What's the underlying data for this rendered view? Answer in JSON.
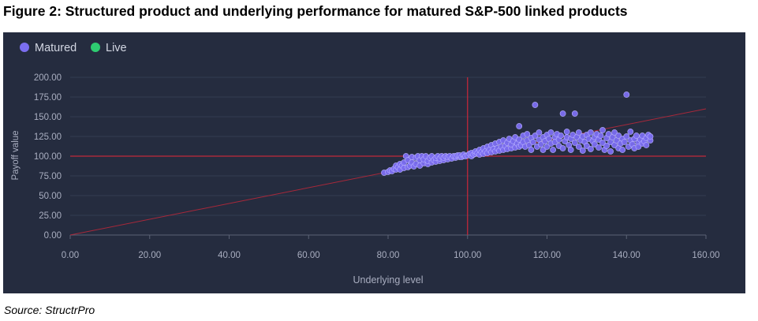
{
  "figure_title": "Figure 2: Structured product and underlying performance for matured S&P-500 linked products",
  "source": "Source: StructrPro",
  "colors": {
    "panel_bg": "#252c3f",
    "matured": "#7b6ef0",
    "live": "#2ecc71",
    "reference_lines": "#c0283a",
    "diagonal": "#c0283a",
    "grid": "#343b50",
    "axis_text": "#a9aec0"
  },
  "chart_data": {
    "type": "scatter",
    "title": "",
    "xlabel": "Underlying level",
    "ylabel": "Payoff value",
    "xlim": [
      0,
      160
    ],
    "ylim": [
      0,
      200
    ],
    "x_ticks": [
      "0.00",
      "20.00",
      "40.00",
      "60.00",
      "80.00",
      "100.00",
      "120.00",
      "140.00",
      "160.00"
    ],
    "y_ticks": [
      "0.00",
      "25.00",
      "50.00",
      "75.00",
      "100.00",
      "125.00",
      "150.00",
      "175.00",
      "200.00"
    ],
    "grid": "horizontal",
    "legend_position": "top-left",
    "reference_lines": {
      "vertical_x": 100,
      "horizontal_y": 100,
      "diagonal": "y = x"
    },
    "series": [
      {
        "name": "Matured",
        "points": [
          [
            79,
            79
          ],
          [
            80,
            80
          ],
          [
            80.5,
            82
          ],
          [
            81,
            81
          ],
          [
            81.5,
            84
          ],
          [
            82,
            83
          ],
          [
            82,
            88
          ],
          [
            82.5,
            86
          ],
          [
            83,
            83
          ],
          [
            83,
            90
          ],
          [
            83.5,
            88
          ],
          [
            84,
            85
          ],
          [
            84,
            92
          ],
          [
            84.5,
            100
          ],
          [
            85,
            86
          ],
          [
            85,
            95
          ],
          [
            85.5,
            88
          ],
          [
            86,
            92
          ],
          [
            86,
            99
          ],
          [
            86.5,
            87
          ],
          [
            87,
            90
          ],
          [
            87,
            98
          ],
          [
            87.5,
            100
          ],
          [
            88,
            88
          ],
          [
            88,
            95
          ],
          [
            88.5,
            100
          ],
          [
            89,
            91
          ],
          [
            89,
            96
          ],
          [
            89.5,
            100
          ],
          [
            90,
            90
          ],
          [
            90,
            94
          ],
          [
            90.5,
            98
          ],
          [
            91,
            92
          ],
          [
            91,
            100
          ],
          [
            91.5,
            95
          ],
          [
            92,
            93
          ],
          [
            92,
            98
          ],
          [
            92.5,
            100
          ],
          [
            93,
            94
          ],
          [
            93,
            97
          ],
          [
            93.5,
            100
          ],
          [
            94,
            95
          ],
          [
            94,
            98
          ],
          [
            94.5,
            100
          ],
          [
            95,
            96
          ],
          [
            95,
            99
          ],
          [
            95.5,
            100
          ],
          [
            96,
            97
          ],
          [
            96.5,
            100
          ],
          [
            97,
            98
          ],
          [
            97,
            100
          ],
          [
            97.5,
            101
          ],
          [
            98,
            99
          ],
          [
            98,
            101
          ],
          [
            98.5,
            99
          ],
          [
            99,
            100
          ],
          [
            99,
            102
          ],
          [
            99.5,
            100
          ],
          [
            100,
            101
          ],
          [
            100.5,
            103
          ],
          [
            101,
            100
          ],
          [
            101,
            104
          ],
          [
            101.5,
            102
          ],
          [
            102,
            103
          ],
          [
            102,
            106
          ],
          [
            102.5,
            104
          ],
          [
            103,
            102
          ],
          [
            103,
            108
          ],
          [
            103.5,
            105
          ],
          [
            104,
            103
          ],
          [
            104,
            110
          ],
          [
            104.5,
            106
          ],
          [
            105,
            104
          ],
          [
            105,
            112
          ],
          [
            105.5,
            108
          ],
          [
            106,
            105
          ],
          [
            106,
            114
          ],
          [
            106.5,
            109
          ],
          [
            107,
            106
          ],
          [
            107,
            116
          ],
          [
            107.5,
            110
          ],
          [
            108,
            107
          ],
          [
            108,
            118
          ],
          [
            108.5,
            112
          ],
          [
            109,
            108
          ],
          [
            109,
            120
          ],
          [
            109.5,
            113
          ],
          [
            110,
            109
          ],
          [
            110,
            117
          ],
          [
            110.5,
            122
          ],
          [
            111,
            110
          ],
          [
            111,
            115
          ],
          [
            111.5,
            119
          ],
          [
            112,
            111
          ],
          [
            112,
            124
          ],
          [
            112.5,
            116
          ],
          [
            113,
            112
          ],
          [
            113,
            121
          ],
          [
            113,
            138
          ],
          [
            113.5,
            114
          ],
          [
            114,
            118
          ],
          [
            114,
            126
          ],
          [
            114.5,
            112
          ],
          [
            115,
            120
          ],
          [
            115,
            128
          ],
          [
            115.5,
            114
          ],
          [
            116,
            123
          ],
          [
            116,
            108
          ],
          [
            116.5,
            118
          ],
          [
            117,
            165
          ],
          [
            117,
            126
          ],
          [
            117.5,
            112
          ],
          [
            118,
            121
          ],
          [
            118,
            130
          ],
          [
            118.5,
            115
          ],
          [
            119,
            124
          ],
          [
            119,
            108
          ],
          [
            119.5,
            119
          ],
          [
            120,
            127
          ],
          [
            120,
            112
          ],
          [
            120.5,
            122
          ],
          [
            121,
            116
          ],
          [
            121,
            130
          ],
          [
            121.5,
            108
          ],
          [
            122,
            124
          ],
          [
            122,
            118
          ],
          [
            122.5,
            128
          ],
          [
            123,
            113
          ],
          [
            123,
            121
          ],
          [
            123.5,
            126
          ],
          [
            124,
            154
          ],
          [
            124,
            110
          ],
          [
            124.5,
            119
          ],
          [
            125,
            124
          ],
          [
            125,
            131
          ],
          [
            125.5,
            114
          ],
          [
            126,
            122
          ],
          [
            126,
            108
          ],
          [
            126.5,
            127
          ],
          [
            127,
            154
          ],
          [
            127,
            117
          ],
          [
            127.5,
            124
          ],
          [
            128,
            112
          ],
          [
            128,
            130
          ],
          [
            128.5,
            120
          ],
          [
            129,
            125
          ],
          [
            129,
            107
          ],
          [
            129.5,
            118
          ],
          [
            130,
            127
          ],
          [
            130,
            113
          ],
          [
            130.5,
            122
          ],
          [
            131,
            130
          ],
          [
            131,
            109
          ],
          [
            131.5,
            119
          ],
          [
            132,
            124
          ],
          [
            132,
            115
          ],
          [
            132.5,
            128
          ],
          [
            133,
            111
          ],
          [
            133,
            121
          ],
          [
            133.5,
            126
          ],
          [
            134,
            117
          ],
          [
            134,
            133
          ],
          [
            134.5,
            108
          ],
          [
            135,
            123
          ],
          [
            135,
            113
          ],
          [
            135.5,
            128
          ],
          [
            136,
            118
          ],
          [
            136,
            106
          ],
          [
            136.5,
            124
          ],
          [
            137,
            114
          ],
          [
            137,
            130
          ],
          [
            137.5,
            120
          ],
          [
            138,
            110
          ],
          [
            138,
            126
          ],
          [
            138.5,
            116
          ],
          [
            139,
            122
          ],
          [
            139,
            108
          ],
          [
            139.5,
            118
          ],
          [
            140,
            178
          ],
          [
            140,
            125
          ],
          [
            140.5,
            112
          ],
          [
            141,
            120
          ],
          [
            141,
            131
          ],
          [
            141.5,
            115
          ],
          [
            142,
            122
          ],
          [
            142,
            110
          ],
          [
            142.5,
            126
          ],
          [
            143,
            117
          ],
          [
            143,
            112
          ],
          [
            143.5,
            121
          ],
          [
            144,
            116
          ],
          [
            144,
            126
          ],
          [
            144.5,
            119
          ],
          [
            145,
            123
          ],
          [
            145,
            114
          ],
          [
            145.5,
            127
          ],
          [
            146,
            120
          ],
          [
            146,
            125
          ]
        ]
      },
      {
        "name": "Live",
        "points": []
      }
    ]
  }
}
